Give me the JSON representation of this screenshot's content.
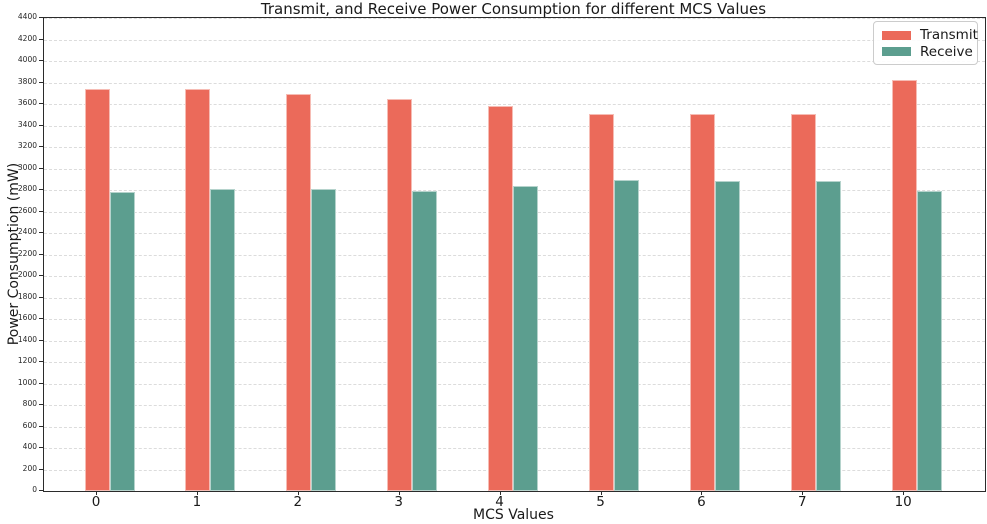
{
  "chart_data": {
    "type": "bar",
    "title": "Transmit, and Receive Power Consumption for different MCS Values",
    "xlabel": "MCS Values",
    "ylabel": "Power Consumption (mW)",
    "categories": [
      "0",
      "1",
      "2",
      "3",
      "4",
      "5",
      "6",
      "7",
      "10"
    ],
    "series": [
      {
        "name": "Transmit",
        "color": "#EB6A5A",
        "values": [
          3740,
          3740,
          3690,
          3650,
          3580,
          3510,
          3510,
          3510,
          3820
        ]
      },
      {
        "name": "Receive",
        "color": "#5C9E8F",
        "values": [
          2780,
          2810,
          2810,
          2790,
          2840,
          2890,
          2880,
          2880,
          2790
        ]
      }
    ],
    "ylim": [
      0,
      4400
    ],
    "ytick_step": 200,
    "grid": true,
    "grid_style": "dashed",
    "legend_position": "upper right",
    "colors": {
      "transmit": "#EB6A5A",
      "receive": "#5C9E8F",
      "gridline": "#dcdcdc",
      "spine": "#2b2b2b",
      "text": "#1a1a1a"
    }
  }
}
